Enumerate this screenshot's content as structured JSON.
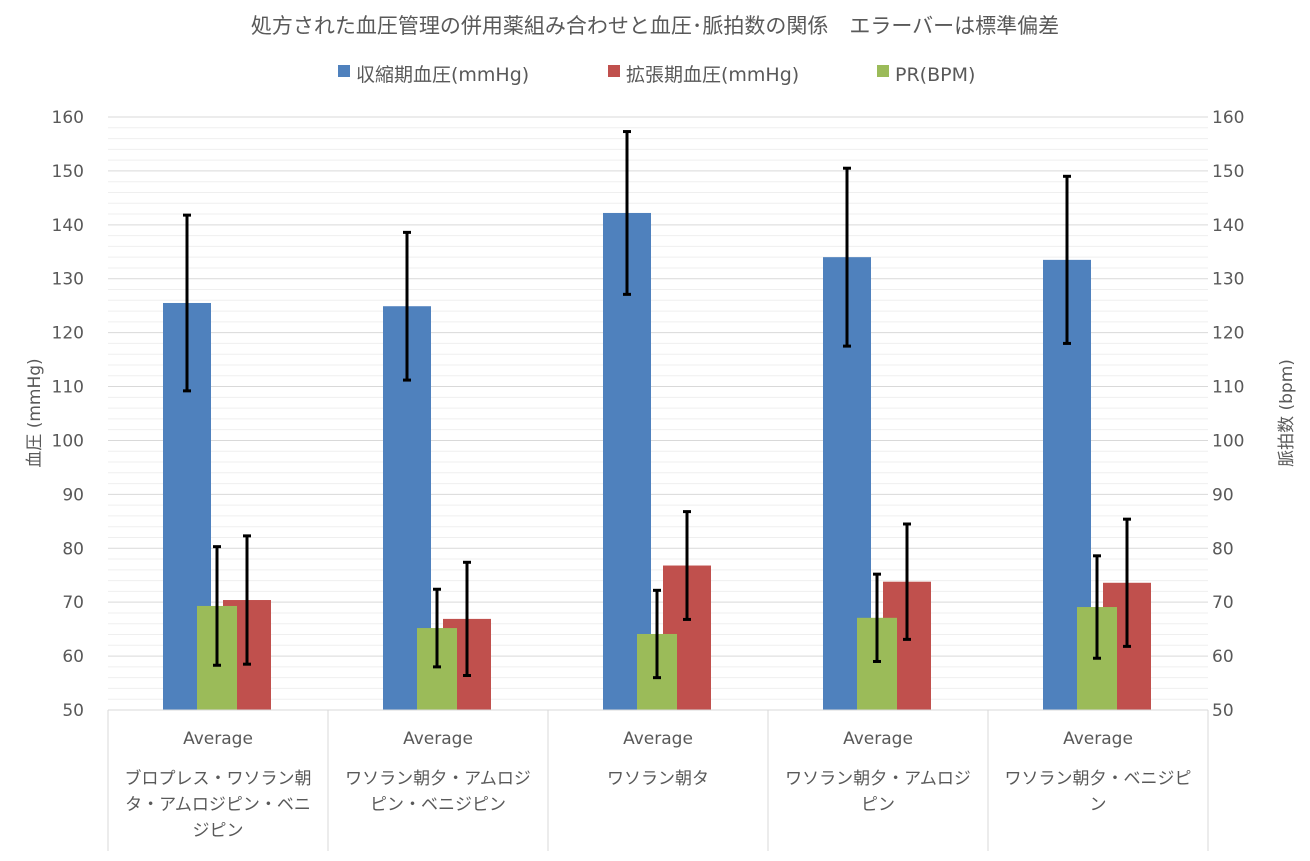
{
  "chart_data": {
    "type": "bar",
    "title": "処方された血圧管理の併用薬組み合わせと血圧･脈拍数の関係　エラーバーは標準偏差",
    "ylabel_left": "血圧 (mmHg)",
    "ylabel_right": "脈拍数 (bpm)",
    "ylim": [
      50,
      160
    ],
    "y2lim": [
      50,
      160
    ],
    "yticks": [
      50,
      60,
      70,
      80,
      90,
      100,
      110,
      120,
      130,
      140,
      150,
      160
    ],
    "grid": true,
    "legend_position": "top",
    "subcategory": "Average",
    "categories": [
      [
        "ブロプレス・ワソラン朝",
        "タ・アムロジピン・ベニ",
        "ジピン"
      ],
      [
        "ワソラン朝夕・アムロジ",
        "ピン・ベニジピン"
      ],
      [
        "ワソラン朝タ"
      ],
      [
        "ワソラン朝夕・アムロジ",
        "ピン"
      ],
      [
        "ワソラン朝夕・ベニジピ",
        "ン"
      ]
    ],
    "series": [
      {
        "name": "収縮期血圧(mmHg)",
        "color": "#4f81bd",
        "axis": "left",
        "values": [
          125.5,
          124.9,
          142.2,
          134.0,
          133.5
        ],
        "sd": [
          16.3,
          13.7,
          15.1,
          16.5,
          15.5
        ]
      },
      {
        "name": "拡張期血圧(mmHg)",
        "color": "#c0504d",
        "axis": "left",
        "values": [
          70.4,
          66.9,
          76.8,
          73.8,
          73.6
        ],
        "sd": [
          11.9,
          10.5,
          10.0,
          10.7,
          11.8
        ]
      },
      {
        "name": "PR(BPM)",
        "color": "#9bbb59",
        "axis": "right",
        "values": [
          69.3,
          65.2,
          64.1,
          67.1,
          69.1
        ],
        "sd": [
          11.0,
          7.2,
          8.1,
          8.1,
          9.5
        ]
      }
    ]
  }
}
